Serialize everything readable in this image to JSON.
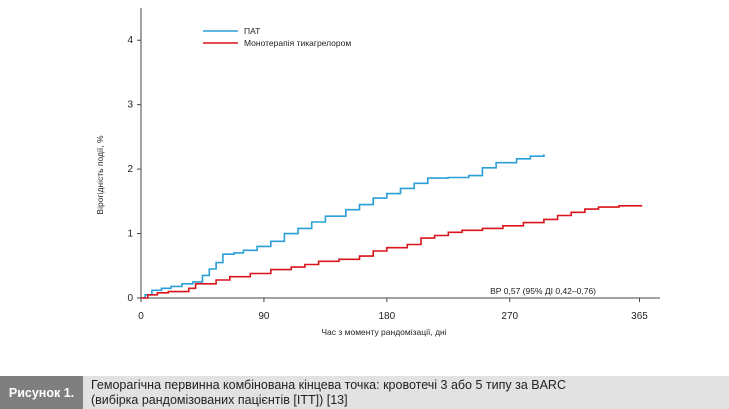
{
  "chart_data": {
    "type": "line",
    "xlabel": "Час з моменту рандомізації, дні",
    "ylabel": "Вірогідність події, %",
    "xlim": [
      0,
      380
    ],
    "ylim": [
      0,
      4.5
    ],
    "xticks": [
      0,
      90,
      180,
      270,
      365
    ],
    "yticks": [
      0,
      1,
      2,
      3,
      4
    ],
    "legend_position": "top-center",
    "annotation": "ВР 0,57 (95% ДІ 0,42–0,76)",
    "series": [
      {
        "name": "ПАТ",
        "color": "#2a9fd8",
        "points": [
          [
            0,
            0
          ],
          [
            3,
            0.05
          ],
          [
            8,
            0.12
          ],
          [
            15,
            0.15
          ],
          [
            22,
            0.18
          ],
          [
            30,
            0.22
          ],
          [
            38,
            0.25
          ],
          [
            45,
            0.35
          ],
          [
            50,
            0.45
          ],
          [
            55,
            0.55
          ],
          [
            60,
            0.68
          ],
          [
            68,
            0.7
          ],
          [
            75,
            0.74
          ],
          [
            85,
            0.8
          ],
          [
            95,
            0.88
          ],
          [
            105,
            1.0
          ],
          [
            115,
            1.08
          ],
          [
            125,
            1.18
          ],
          [
            135,
            1.27
          ],
          [
            150,
            1.37
          ],
          [
            160,
            1.45
          ],
          [
            170,
            1.55
          ],
          [
            180,
            1.62
          ],
          [
            190,
            1.7
          ],
          [
            200,
            1.78
          ],
          [
            210,
            1.86
          ],
          [
            225,
            1.87
          ],
          [
            240,
            1.9
          ],
          [
            250,
            2.02
          ],
          [
            260,
            2.1
          ],
          [
            275,
            2.16
          ],
          [
            285,
            2.2
          ],
          [
            295,
            2.23
          ]
        ]
      },
      {
        "name": "Монотерапія тикагрелором",
        "color": "#d9141b",
        "points": [
          [
            0,
            0
          ],
          [
            5,
            0.05
          ],
          [
            12,
            0.08
          ],
          [
            20,
            0.1
          ],
          [
            35,
            0.15
          ],
          [
            40,
            0.22
          ],
          [
            55,
            0.28
          ],
          [
            65,
            0.33
          ],
          [
            80,
            0.38
          ],
          [
            95,
            0.44
          ],
          [
            110,
            0.48
          ],
          [
            120,
            0.52
          ],
          [
            130,
            0.57
          ],
          [
            145,
            0.6
          ],
          [
            160,
            0.65
          ],
          [
            170,
            0.73
          ],
          [
            180,
            0.78
          ],
          [
            195,
            0.83
          ],
          [
            205,
            0.93
          ],
          [
            215,
            0.97
          ],
          [
            225,
            1.02
          ],
          [
            235,
            1.05
          ],
          [
            250,
            1.08
          ],
          [
            265,
            1.12
          ],
          [
            280,
            1.17
          ],
          [
            295,
            1.22
          ],
          [
            305,
            1.28
          ],
          [
            315,
            1.33
          ],
          [
            325,
            1.38
          ],
          [
            335,
            1.41
          ],
          [
            350,
            1.43
          ],
          [
            367,
            1.43
          ]
        ]
      }
    ]
  },
  "caption": {
    "label": "Рисунок 1.",
    "line1": "Геморагічна первинна комбінована кінцева точка: кровотечі 3 або 5 типу за BARC",
    "line2": "(вибірка рандомізованих пацієнтів [ITT]) [13]"
  }
}
